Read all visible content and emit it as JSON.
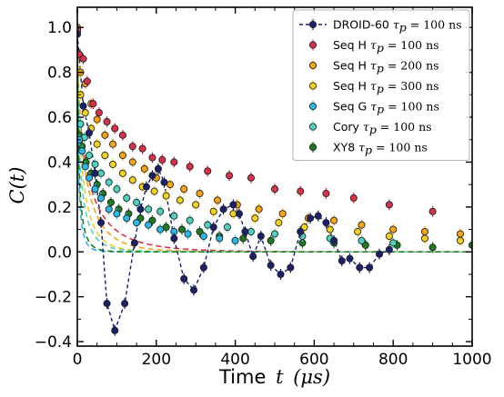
{
  "chart_data": {
    "type": "scatter",
    "title": "",
    "xlabel": {
      "text": "Time",
      "math": "t",
      "unit": "(μs)"
    },
    "ylabel": {
      "math": "C(t)"
    },
    "xlim": [
      0,
      1000
    ],
    "ylim": [
      -0.42,
      1.09
    ],
    "xticks": [
      0,
      200,
      400,
      600,
      800,
      1000
    ],
    "yticks": [
      -0.4,
      -0.2,
      0.0,
      0.2,
      0.4,
      0.6,
      0.8,
      1.0
    ],
    "xtick_labels": [
      "0",
      "200",
      "400",
      "600",
      "800",
      "1000"
    ],
    "ytick_labels": [
      "−0.4",
      "−0.2",
      "0.0",
      "0.2",
      "0.4",
      "0.6",
      "0.8",
      "1.0"
    ],
    "grid": false,
    "legend_position": "top-right",
    "series": [
      {
        "name": "DROID-60",
        "tau_symbol": "τ",
        "tau_sub": "p",
        "tau_value": "= 100",
        "tau_unit": "ns",
        "color": "#1a1f6e",
        "marker": "circle",
        "line": "dashed-connect",
        "x": [
          0,
          15,
          30,
          45,
          60,
          75,
          95,
          120,
          145,
          160,
          175,
          190,
          205,
          220,
          245,
          270,
          295,
          320,
          345,
          370,
          395,
          410,
          425,
          445,
          465,
          490,
          515,
          540,
          565,
          590,
          610,
          630,
          650,
          670,
          690,
          715,
          740,
          765,
          790
        ],
        "y": [
          0.97,
          0.65,
          0.53,
          0.35,
          0.13,
          -0.23,
          -0.35,
          -0.23,
          0.04,
          0.19,
          0.29,
          0.34,
          0.37,
          0.31,
          0.06,
          -0.12,
          -0.17,
          -0.07,
          0.11,
          0.19,
          0.21,
          0.17,
          0.09,
          -0.02,
          0.07,
          -0.06,
          -0.1,
          -0.07,
          0.09,
          0.15,
          0.16,
          0.13,
          0.05,
          -0.04,
          -0.03,
          -0.07,
          -0.07,
          -0.01,
          0.01
        ]
      },
      {
        "name": "Seq H",
        "tau_symbol": "τ",
        "tau_sub": "p",
        "tau_value": "= 100",
        "tau_unit": "ns",
        "color": "#d7304b",
        "marker": "circle",
        "fit": {
          "A": 0.92,
          "tau": 27,
          "n": 0.63,
          "offset": 0.0
        },
        "x": [
          0,
          5,
          15,
          25,
          40,
          55,
          75,
          95,
          115,
          140,
          165,
          190,
          215,
          245,
          285,
          330,
          385,
          440,
          500,
          565,
          630,
          700,
          790,
          900
        ],
        "y": [
          0.99,
          0.88,
          0.86,
          0.76,
          0.66,
          0.62,
          0.58,
          0.55,
          0.52,
          0.47,
          0.46,
          0.42,
          0.41,
          0.4,
          0.38,
          0.36,
          0.34,
          0.33,
          0.28,
          0.27,
          0.26,
          0.24,
          0.21,
          0.18
        ]
      },
      {
        "name": "Seq H",
        "tau_symbol": "τ",
        "tau_sub": "p",
        "tau_value": "= 200",
        "tau_unit": "ns",
        "color": "#f6a314",
        "marker": "circle",
        "fit": {
          "A": 0.92,
          "tau": 22,
          "n": 0.68,
          "offset": 0.0
        },
        "x": [
          0,
          8,
          20,
          35,
          50,
          70,
          90,
          115,
          140,
          170,
          200,
          235,
          270,
          310,
          355,
          405,
          460,
          520,
          585,
          650,
          720,
          800,
          880,
          970
        ],
        "y": [
          1.0,
          0.8,
          0.75,
          0.66,
          0.59,
          0.52,
          0.48,
          0.43,
          0.4,
          0.37,
          0.33,
          0.3,
          0.28,
          0.26,
          0.23,
          0.21,
          0.19,
          0.17,
          0.15,
          0.14,
          0.12,
          0.1,
          0.09,
          0.08
        ]
      },
      {
        "name": "Seq H",
        "tau_symbol": "τ",
        "tau_sub": "p",
        "tau_value": "= 300",
        "tau_unit": "ns",
        "color": "#f2d21d",
        "marker": "circle",
        "fit": {
          "A": 0.93,
          "tau": 14,
          "n": 0.68,
          "offset": 0.0
        },
        "x": [
          0,
          8,
          20,
          35,
          50,
          70,
          90,
          115,
          140,
          165,
          195,
          225,
          260,
          300,
          345,
          395,
          450,
          510,
          575,
          640,
          710,
          790,
          880,
          970
        ],
        "y": [
          0.99,
          0.7,
          0.62,
          0.55,
          0.48,
          0.43,
          0.39,
          0.35,
          0.32,
          0.29,
          0.27,
          0.25,
          0.23,
          0.21,
          0.18,
          0.17,
          0.15,
          0.13,
          0.11,
          0.1,
          0.09,
          0.07,
          0.06,
          0.05
        ]
      },
      {
        "name": "Seq G",
        "tau_symbol": "τ",
        "tau_sub": "p",
        "tau_value": "= 100",
        "tau_unit": "ns",
        "color": "#2ab8e6",
        "marker": "circle",
        "fit": {
          "A": 0.9,
          "tau": 3.5,
          "n": 0.6,
          "offset": 0.0
        },
        "x": [
          0,
          5,
          12,
          20,
          30,
          45,
          60,
          80,
          100,
          125,
          150,
          180,
          210,
          245,
          280,
          320,
          360,
          400
        ],
        "y": [
          0.99,
          0.5,
          0.45,
          0.38,
          0.33,
          0.28,
          0.24,
          0.19,
          0.17,
          0.15,
          0.13,
          0.12,
          0.1,
          0.09,
          0.08,
          0.07,
          0.06,
          0.05
        ]
      },
      {
        "name": "Cory",
        "tau_symbol": "τ",
        "tau_sub": "p",
        "tau_value": "= 100",
        "tau_unit": "ns",
        "color": "#4fd1c0",
        "marker": "circle",
        "fit": {
          "A": 0.95,
          "tau": 9,
          "n": 0.6,
          "offset": 0.0
        },
        "x": [
          0,
          8,
          18,
          30,
          45,
          60,
          80,
          100,
          125,
          150,
          180,
          210,
          245,
          285,
          330,
          380,
          440,
          500,
          570,
          640,
          720,
          800
        ],
        "y": [
          0.98,
          0.57,
          0.51,
          0.43,
          0.39,
          0.35,
          0.31,
          0.28,
          0.24,
          0.22,
          0.19,
          0.18,
          0.16,
          0.14,
          0.12,
          0.11,
          0.09,
          0.08,
          0.07,
          0.06,
          0.05,
          0.04
        ]
      },
      {
        "name": "XY8",
        "tau_symbol": "τ",
        "tau_sub": "p",
        "tau_value": "= 100",
        "tau_unit": "ns",
        "color": "#1e7a1e",
        "marker": "circle",
        "fit": {
          "A": 0.92,
          "tau": 5,
          "n": 0.62,
          "offset": 0.0
        },
        "x": [
          0,
          5,
          12,
          22,
          35,
          50,
          65,
          85,
          105,
          130,
          160,
          190,
          225,
          265,
          310,
          360,
          420,
          490,
          570,
          650,
          730,
          810,
          900,
          1000
        ],
        "y": [
          0.99,
          0.52,
          0.47,
          0.4,
          0.35,
          0.3,
          0.26,
          0.22,
          0.19,
          0.17,
          0.15,
          0.14,
          0.11,
          0.1,
          0.09,
          0.07,
          0.06,
          0.05,
          0.04,
          0.04,
          0.03,
          0.03,
          0.02,
          0.03
        ]
      }
    ]
  }
}
